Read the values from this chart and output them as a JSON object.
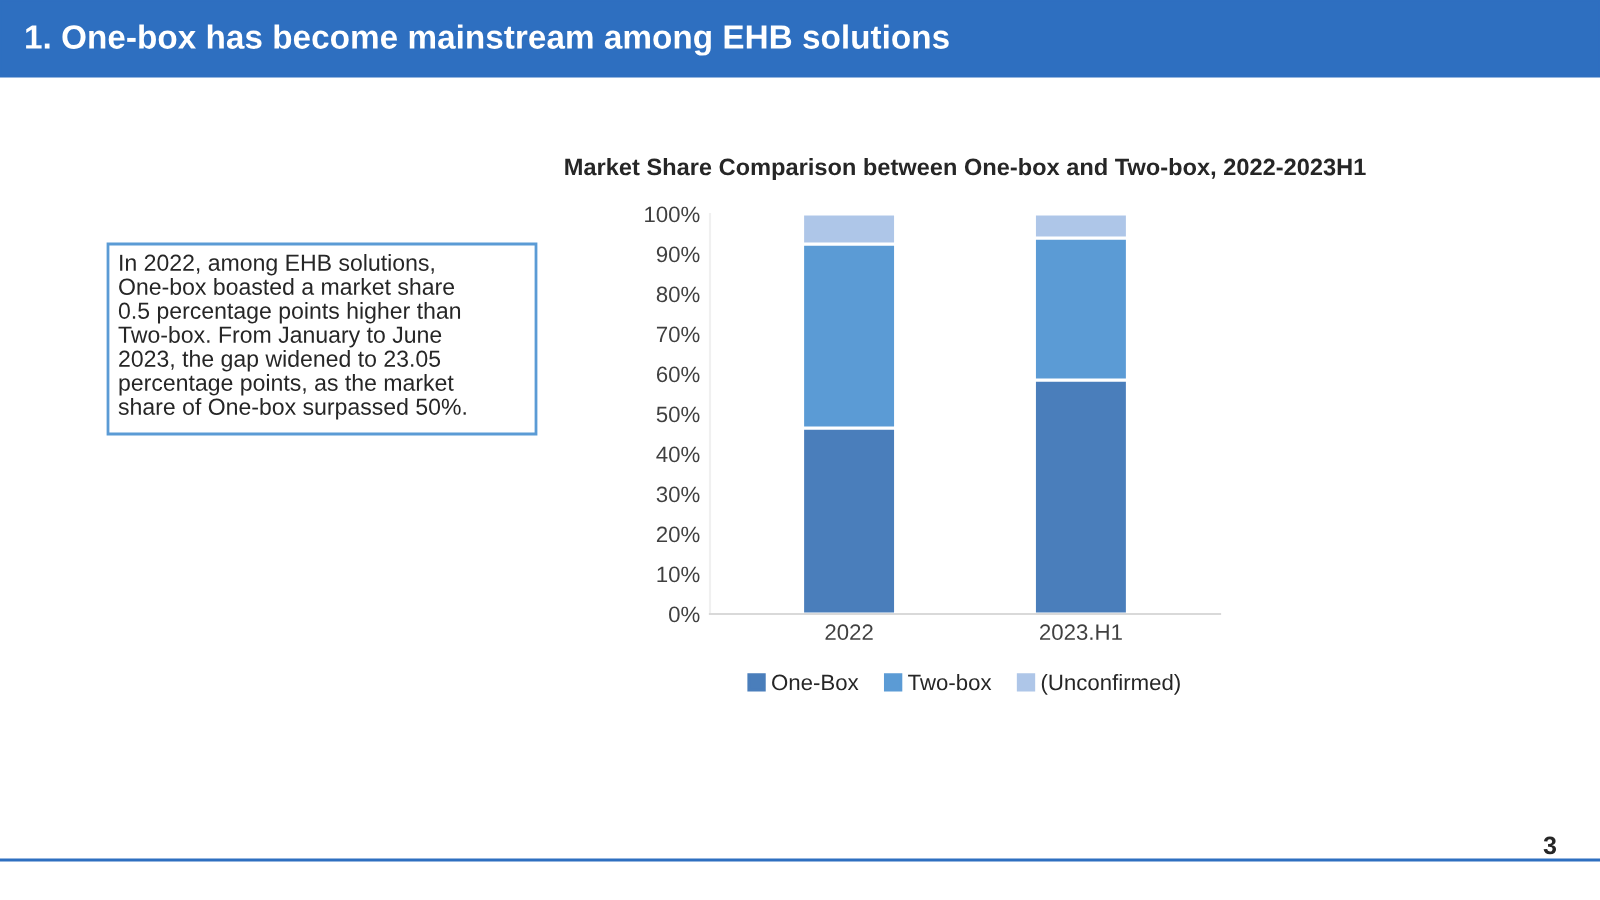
{
  "chart_data": {
    "type": "bar",
    "stacked": true,
    "title": "Market Share Comparison between One-box and Two-box, 2022-2023H1",
    "categories": [
      "2022",
      "2023.H1"
    ],
    "series": [
      {
        "name": "One-Box",
        "color": "#4a7ebb",
        "values": [
          46.5,
          58.5
        ]
      },
      {
        "name": "Two-box",
        "color": "#5b9bd5",
        "values": [
          46.0,
          35.5
        ]
      },
      {
        "name": "(Unconfirmed)",
        "color": "#aec6e8",
        "values": [
          7.5,
          6.0
        ]
      }
    ],
    "ylim": [
      0,
      100
    ],
    "yticks": [
      {
        "value": 0,
        "label": "0%"
      },
      {
        "value": 10,
        "label": "10%"
      },
      {
        "value": 20,
        "label": "20%"
      },
      {
        "value": 30,
        "label": "30%"
      },
      {
        "value": 40,
        "label": "40%"
      },
      {
        "value": 50,
        "label": "50%"
      },
      {
        "value": 60,
        "label": "60%"
      },
      {
        "value": 70,
        "label": "70%"
      },
      {
        "value": 80,
        "label": "80%"
      },
      {
        "value": 90,
        "label": "90%"
      },
      {
        "value": 100,
        "label": "100%"
      }
    ],
    "grid": false,
    "legend": "bottom",
    "annotations": [
      "1. One-box has become mainstream among EHB solutions",
      "In 2022, among EHB solutions, One-box boasted a market share 0.5 percentage points higher than Two-box. From January to June 2023, the gap widened to 23.05 percentage points, as the market share of One-box surpassed 50%.",
      "3"
    ]
  }
}
